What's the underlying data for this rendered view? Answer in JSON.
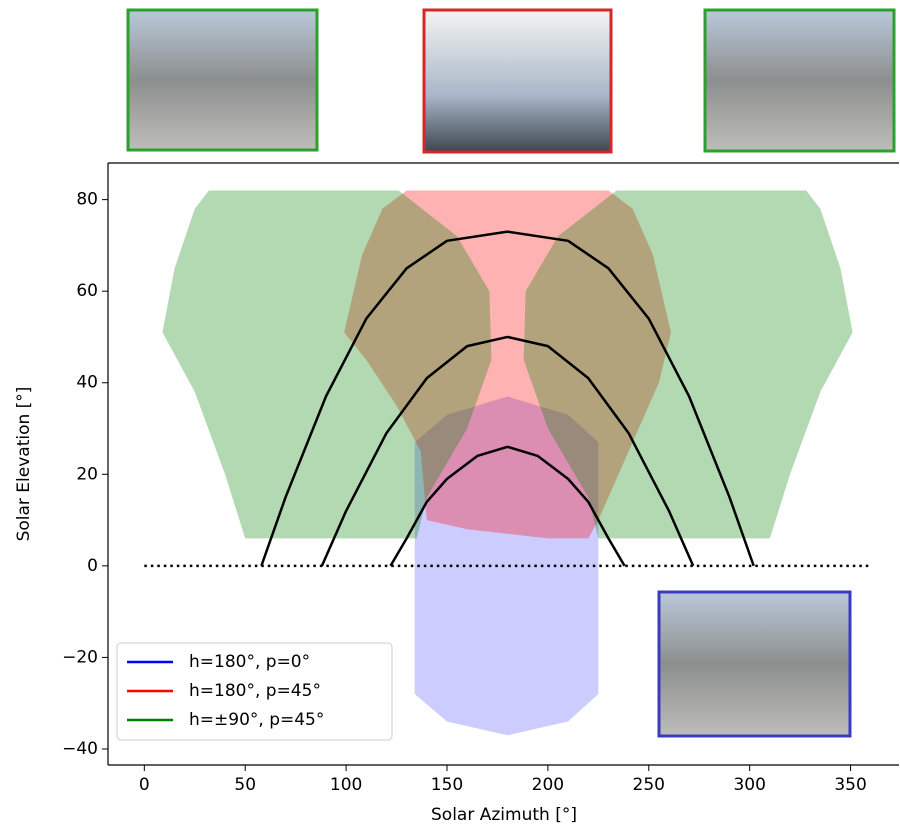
{
  "chart_data": {
    "type": "line",
    "xlabel": "Solar Azimuth [°]",
    "ylabel": "Solar Elevation [°]",
    "xlim": [
      -18,
      374
    ],
    "ylim": [
      -43.5,
      88
    ],
    "xticks": [
      0,
      50,
      100,
      150,
      200,
      250,
      300,
      350
    ],
    "yticks": [
      {
        "value": -40,
        "label": "−40"
      },
      {
        "value": -20,
        "label": "−20"
      },
      0,
      20,
      40,
      60,
      80
    ],
    "legend": "lower left",
    "series": [
      {
        "name": "h=180°, p=0°",
        "color": "#0000ff",
        "regions": [
          {
            "x": [
              134,
              150,
              180,
              210,
              225,
              225,
              210,
              180,
              150,
              134
            ],
            "y": [
              27,
              33,
              37,
              33,
              27,
              -28,
              -34,
              -37,
              -34,
              -28
            ]
          }
        ]
      },
      {
        "name": "h=180°, p=45°",
        "color": "#ff0000",
        "regions": [
          {
            "x": [
              99,
              108,
              118,
              130,
              150,
              180,
              210,
              230,
              242,
              252,
              261,
              255,
              240,
              225,
              220,
              200,
              180,
              160,
              140,
              137,
              125,
              110,
              99
            ],
            "y": [
              51,
              68,
              78,
              82,
              82,
              82,
              82,
              82,
              78,
              68,
              51,
              40,
              25,
              10,
              6,
              6,
              7,
              8,
              10,
              25,
              35,
              45,
              51
            ]
          }
        ]
      },
      {
        "name": "h=±90°, p=45°",
        "color": "#008000",
        "regions": [
          {
            "x": [
              9,
              15,
              25,
              32,
              60,
              100,
              126,
              155,
              171,
              172,
              160,
              140,
              135,
              110,
              80,
              50,
              40,
              25,
              9
            ],
            "y": [
              51,
              65,
              78,
              82,
              82,
              82,
              82,
              72,
              60,
              45,
              30,
              15,
              6,
              6,
              6,
              6,
              20,
              38,
              51
            ]
          },
          {
            "x": [
              351,
              345,
              335,
              328,
              300,
              260,
              234,
              205,
              189,
              188,
              200,
              220,
              225,
              250,
              280,
              310,
              320,
              335,
              351
            ],
            "y": [
              51,
              65,
              78,
              82,
              82,
              82,
              82,
              72,
              60,
              45,
              30,
              15,
              6,
              6,
              6,
              6,
              20,
              38,
              51
            ]
          }
        ]
      }
    ],
    "sun_paths": [
      {
        "x": [
          58,
          70,
          90,
          110,
          130,
          150,
          180,
          210,
          230,
          250,
          270,
          290,
          302
        ],
        "y": [
          0,
          15,
          37,
          54,
          65,
          71,
          73,
          71,
          65,
          54,
          37,
          15,
          0
        ]
      },
      {
        "x": [
          88,
          100,
          120,
          140,
          160,
          180,
          200,
          220,
          240,
          260,
          272
        ],
        "y": [
          0,
          12,
          29,
          41,
          48,
          50,
          48,
          41,
          29,
          12,
          0
        ]
      },
      {
        "x": [
          122,
          130,
          140,
          150,
          165,
          180,
          195,
          210,
          220,
          230,
          238
        ],
        "y": [
          0,
          6,
          14,
          19,
          24,
          26,
          24,
          19,
          14,
          6,
          0
        ]
      }
    ],
    "horizon": {
      "x": [
        0,
        360
      ],
      "y": [
        0,
        0
      ]
    }
  }
}
